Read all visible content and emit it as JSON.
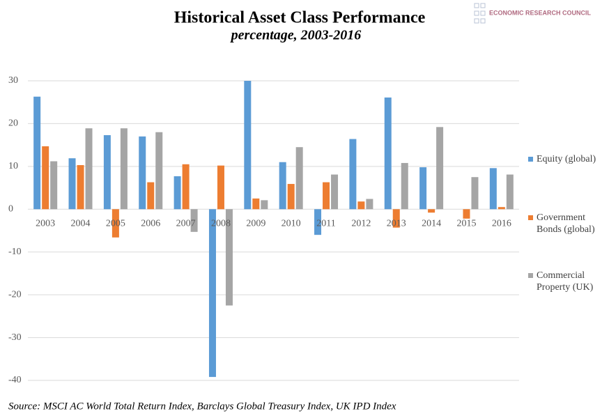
{
  "chart_data": {
    "type": "bar",
    "title": "Historical Asset Class Performance",
    "subtitle": "percentage, 2003-2016",
    "logo": "ECONOMIC RESEARCH COUNCIL",
    "source": "Source: MSCI AC World Total Return Index, Barclays Global Treasury Index, UK IPD Index",
    "categories": [
      "2003",
      "2004",
      "2005",
      "2006",
      "2007",
      "2008",
      "2009",
      "2010",
      "2011",
      "2012",
      "2013",
      "2014",
      "2015",
      "2016"
    ],
    "series": [
      {
        "name": "Equity (global)",
        "color": "#5b9bd5",
        "values": [
          26.3,
          11.9,
          17.3,
          17.0,
          7.7,
          -39.2,
          30.0,
          11.0,
          -6.0,
          16.4,
          26.1,
          9.8,
          0,
          9.6
        ]
      },
      {
        "name": "Government Bonds (global)",
        "color": "#ed7d31",
        "values": [
          14.7,
          10.3,
          -6.6,
          6.3,
          10.5,
          10.2,
          2.5,
          5.9,
          6.3,
          1.8,
          -4.3,
          -0.8,
          -2.2,
          0.5
        ]
      },
      {
        "name": "Commercial Property (UK)",
        "color": "#a5a5a5",
        "values": [
          11.2,
          18.9,
          18.9,
          18.0,
          -5.3,
          -22.5,
          2.1,
          14.5,
          8.1,
          2.4,
          10.8,
          19.2,
          7.5,
          8.1
        ]
      }
    ],
    "ylim": [
      -40,
      30
    ],
    "yticks": [
      -40,
      -30,
      -20,
      -10,
      0,
      10,
      20,
      30
    ],
    "grid": true
  }
}
